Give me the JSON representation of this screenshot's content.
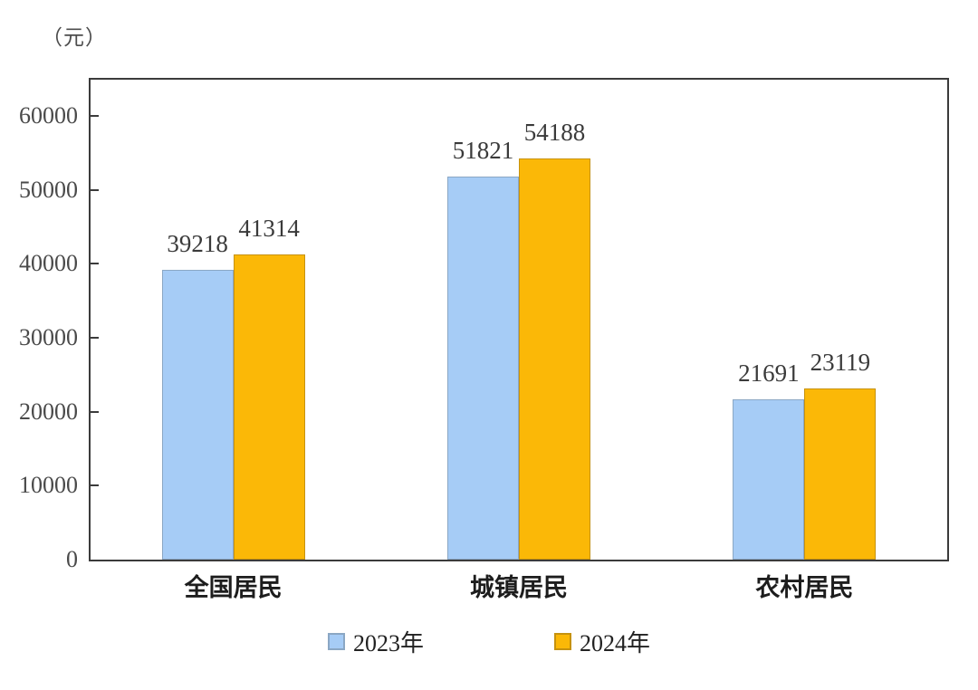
{
  "chart_data": {
    "type": "bar",
    "unit_label": "（元）",
    "categories": [
      "全国居民",
      "城镇居民",
      "农村居民"
    ],
    "series": [
      {
        "name": "2023年",
        "color": "#A6CCF6",
        "border_color": "#8BA7C4",
        "values": [
          39218,
          51821,
          21691
        ]
      },
      {
        "name": "2024年",
        "color": "#FBB807",
        "border_color": "#C6920F",
        "values": [
          41314,
          54188,
          23119
        ]
      }
    ],
    "ylabel": "（元）",
    "ylim": [
      0,
      60000
    ],
    "yticks": [
      0,
      10000,
      20000,
      30000,
      40000,
      50000,
      60000
    ],
    "grid": false,
    "legend_position": "bottom",
    "value_labels": true
  }
}
